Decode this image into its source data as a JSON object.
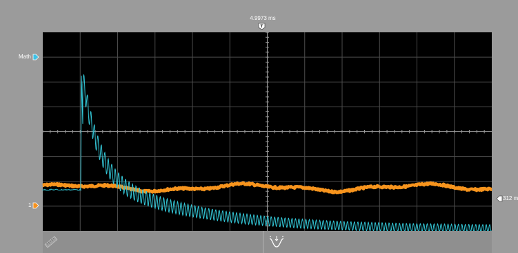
{
  "trigger_position": {
    "value": "4.9973 ms",
    "marker_icon": "trigger-position-icon"
  },
  "math_channel": {
    "label": "Math",
    "color": "#3fc1e6"
  },
  "channel_1": {
    "label": "1",
    "color": "#f6921e"
  },
  "ch_level": {
    "label": "312 m"
  },
  "colors": {
    "background": "#9b9b9b",
    "screen": "#000000",
    "grid": "#555555",
    "trace_math": "#33c6d6",
    "trace_ch1": "#f7941d"
  },
  "toolbar": {
    "measure_icon": "ruler-icon",
    "waveform_icon": "waveform-analysis-icon"
  }
}
